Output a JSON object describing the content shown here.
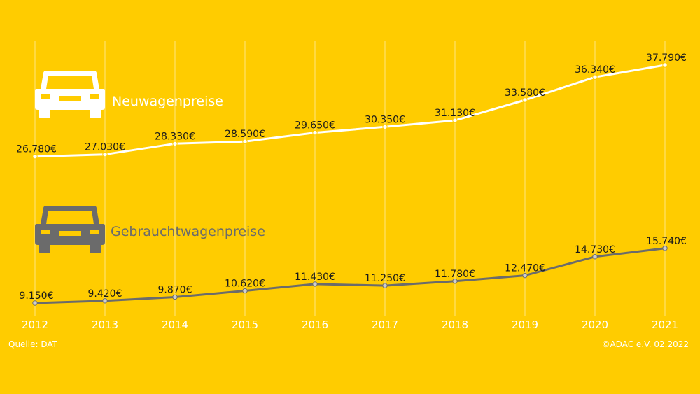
{
  "chart_data": {
    "type": "line",
    "x": [
      "2012",
      "2013",
      "2014",
      "2015",
      "2016",
      "2017",
      "2018",
      "2019",
      "2020",
      "2021"
    ],
    "series": [
      {
        "name": "Neuwagenpreise",
        "values": [
          26780,
          27030,
          28330,
          28590,
          29650,
          30350,
          31130,
          33580,
          36340,
          37790
        ],
        "labels": [
          "26.780€",
          "27.030€",
          "28.330€",
          "28.590€",
          "29.650€",
          "30.350€",
          "31.130€",
          "33.580€",
          "36.340€",
          "37.790€"
        ],
        "color": "#ffffff",
        "icon": "car-front-icon"
      },
      {
        "name": "Gebrauchtwagenpreise",
        "values": [
          9150,
          9420,
          9870,
          10620,
          11430,
          11250,
          11780,
          12470,
          14730,
          15740
        ],
        "labels": [
          "9.150€",
          "9.420€",
          "9.870€",
          "10.620€",
          "11.430€",
          "11.250€",
          "11.780€",
          "12.470€",
          "14.730€",
          "15.740€"
        ],
        "color": "#6b6b6b",
        "icon": "car-front-icon"
      }
    ],
    "grid": true,
    "background": "#ffcc00",
    "source": "Quelle: DAT",
    "copyright": "©ADAC e.V.  02.2022"
  }
}
